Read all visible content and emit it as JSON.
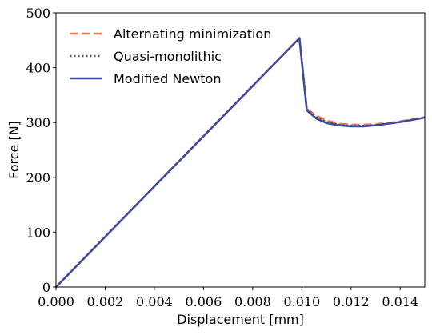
{
  "chart_data": {
    "type": "line",
    "title": "",
    "xlabel": "Displacement [mm]",
    "ylabel": "Force [N]",
    "xlim": [
      0,
      0.015
    ],
    "ylim": [
      0,
      500
    ],
    "xticks": [
      0,
      0.002,
      0.004,
      0.006,
      0.008,
      0.01,
      0.012,
      0.014
    ],
    "xtick_labels": [
      "0.000",
      "0.002",
      "0.004",
      "0.006",
      "0.008",
      "0.010",
      "0.012",
      "0.014"
    ],
    "yticks": [
      0,
      100,
      200,
      300,
      400,
      500
    ],
    "ytick_labels": [
      "0",
      "100",
      "200",
      "300",
      "400",
      "500"
    ],
    "grid": false,
    "legend_position": "top-left",
    "series": [
      {
        "name": "Alternating minimization",
        "color": "#f4794e",
        "style": "dashed",
        "x": [
          0,
          0.0099,
          0.0102,
          0.0106,
          0.011,
          0.0115,
          0.012,
          0.0125,
          0.013,
          0.0135,
          0.014,
          0.0145,
          0.015
        ],
        "y": [
          0,
          454,
          325,
          312,
          304,
          298,
          296,
          296,
          297,
          299,
          302,
          306,
          310
        ]
      },
      {
        "name": "Quasi-monolithic",
        "color": "#555555",
        "style": "dotted",
        "x": [
          0,
          0.0099,
          0.0102,
          0.0106,
          0.011,
          0.0115,
          0.012,
          0.0125,
          0.013,
          0.0135,
          0.014,
          0.0145,
          0.015
        ],
        "y": [
          0,
          454,
          323,
          309,
          301,
          296,
          294,
          294,
          295,
          298,
          301,
          305,
          309
        ]
      },
      {
        "name": "Modified Newton",
        "color": "#3b4a9e",
        "style": "solid",
        "x": [
          0,
          0.0099,
          0.0102,
          0.0106,
          0.011,
          0.0115,
          0.012,
          0.0125,
          0.013,
          0.0135,
          0.014,
          0.0145,
          0.015
        ],
        "y": [
          0,
          454,
          322,
          307,
          299,
          295,
          293,
          293,
          295,
          298,
          301,
          305,
          309
        ]
      }
    ]
  }
}
